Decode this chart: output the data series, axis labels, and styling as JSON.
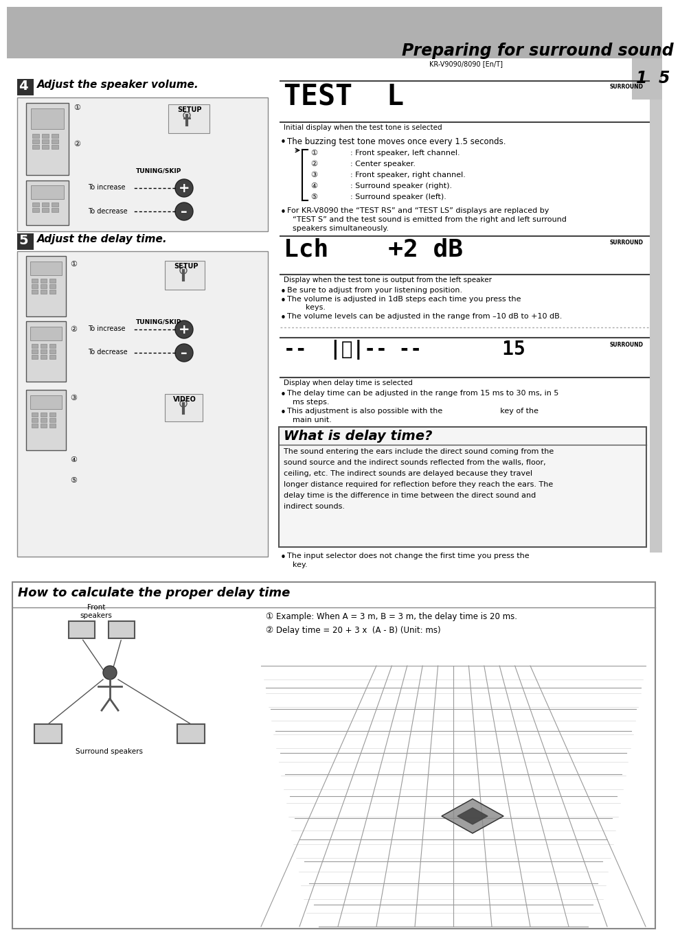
{
  "page_bg": "#ffffff",
  "header_bg": "#b0b0b0",
  "header_title": "Preparing for surround sound",
  "header_model": "KR-V9090/8090 [En/T]",
  "page_num": "1  5",
  "section4_title": "Adjust the speaker volume.",
  "section5_title": "Adjust the delay time.",
  "display1_caption": "Initial display when the test tone is selected",
  "bullet1": "The buzzing test tone moves once every 1.5 seconds.",
  "numbered_items": [
    ": Front speaker, left channel.",
    ": Center speaker.",
    ": Front speaker, right channel.",
    ": Surround speaker (right).",
    ": Surround speaker (left)."
  ],
  "bullet2a": "For KR-V8090 the “TEST RS” and “TEST LS” displays are replaced by",
  "bullet2b": "“TEST S” and the test sound is emitted from the right and left surround",
  "bullet2c": "speakers simultaneously.",
  "display2_caption": "Display when the test tone is output from the left speaker",
  "bullet3a": "Be sure to adjust from your listening position.",
  "bullet3b": "The volume is adjusted in 1dB steps each time you press the",
  "bullet3b2": "keys.",
  "bullet3c": "The volume levels can be adjusted in the range from –10 dB to +10 dB.",
  "display3_caption": "Display when delay time is selected",
  "bullet4a": "The delay time can be adjusted in the range from 15 ms to 30 ms, in 5",
  "bullet4b": "ms steps.",
  "bullet4c": "This adjustment is also possible with the                        key of the",
  "bullet4d": "main unit.",
  "what_title": "What is delay time?",
  "what_body": "The sound entering the ears include the direct sound coming from the\nsound source and the indirect sounds reflected from the walls, floor,\nceiling, etc. The indirect sounds are delayed because they travel\nlonger distance required for reflection before they reach the ears. The\ndelay time is the difference in time between the direct sound and\nindirect sounds.",
  "bullet5a": "The input selector does not change the first time you press the",
  "bullet5b": "key.",
  "how_title": "How to calculate the proper delay time",
  "how_item1": "Example: When A = 3 m, B = 3 m, the delay time is 20 ms.",
  "how_item2": "Delay time = 20 + 3 x  (A - B) (Unit: ms)",
  "front_label": "Front\nspeakers",
  "surround_label": "Surround speakers",
  "gray_light": "#ececec",
  "gray_medium": "#b8b8b8"
}
